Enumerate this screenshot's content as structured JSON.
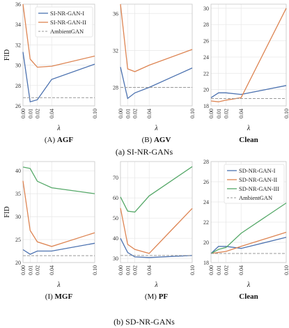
{
  "colors": {
    "series1": "#4c72b0",
    "series2": "#dd8452",
    "series3": "#55a868",
    "baseline": "#999999"
  },
  "captions": {
    "top": "(a) SI-NR-GANs",
    "bottom": "(b) SD-NR-GANs"
  },
  "chart_data": [
    {
      "type": "line",
      "ylabel": "FID",
      "xlabel": "λ",
      "caption_prefix": "(A) ",
      "caption_bold": "AGF",
      "x": [
        0.0,
        0.01,
        0.02,
        0.04,
        0.1
      ],
      "xticks": [
        "0.00",
        "0.01",
        "0.02",
        "0.04",
        "0.10"
      ],
      "ylim": [
        26,
        36
      ],
      "yticks": [
        26,
        28,
        30,
        32,
        34,
        36
      ],
      "grid": true,
      "legend": "top-right",
      "series": [
        {
          "name": "SI-NR-GAN-I",
          "color": "#4c72b0",
          "values": [
            31.3,
            26.4,
            26.6,
            28.6,
            30.1
          ]
        },
        {
          "name": "SI-NR-GAN-II",
          "color": "#dd8452",
          "values": [
            36.0,
            30.6,
            29.8,
            29.9,
            30.9
          ]
        },
        {
          "name": "AmbientGAN",
          "color": "#999999",
          "dashed": true,
          "values": [
            26.8,
            26.8,
            26.8,
            26.8,
            26.8
          ]
        }
      ]
    },
    {
      "type": "line",
      "ylabel": "",
      "xlabel": "λ",
      "caption_prefix": "(B) ",
      "caption_bold": "AGV",
      "x": [
        0.0,
        0.01,
        0.02,
        0.04,
        0.1
      ],
      "xticks": [
        "0.00",
        "0.01",
        "0.02",
        "0.04",
        "0.10"
      ],
      "ylim": [
        26,
        37
      ],
      "yticks": [
        28,
        32,
        36
      ],
      "grid": true,
      "series": [
        {
          "name": "SI-NR-GAN-I",
          "color": "#4c72b0",
          "values": [
            30.2,
            26.8,
            27.4,
            28.0,
            30.1
          ]
        },
        {
          "name": "SI-NR-GAN-II",
          "color": "#dd8452",
          "values": [
            37.0,
            30.0,
            29.7,
            30.4,
            32.1
          ]
        },
        {
          "name": "AmbientGAN",
          "color": "#999999",
          "dashed": true,
          "values": [
            28.0,
            28.0,
            28.0,
            28.0,
            28.0
          ]
        }
      ]
    },
    {
      "type": "line",
      "ylabel": "",
      "xlabel": "λ",
      "caption_prefix": "",
      "caption_bold": "Clean",
      "x": [
        0.0,
        0.01,
        0.02,
        0.04,
        0.1
      ],
      "xticks": [
        "0.00",
        "0.01",
        "0.02",
        "0.04",
        "0.10"
      ],
      "ylim": [
        18,
        30.5
      ],
      "yticks": [
        18,
        20,
        22,
        24,
        26,
        28,
        30
      ],
      "grid": true,
      "series": [
        {
          "name": "SI-NR-GAN-I",
          "color": "#4c72b0",
          "values": [
            19.0,
            19.6,
            19.6,
            19.4,
            20.5
          ]
        },
        {
          "name": "SI-NR-GAN-II",
          "color": "#dd8452",
          "values": [
            18.6,
            18.5,
            18.7,
            19.0,
            30.0
          ]
        },
        {
          "name": "AmbientGAN",
          "color": "#999999",
          "dashed": true,
          "values": [
            18.9,
            18.9,
            18.9,
            18.9,
            18.9
          ]
        }
      ]
    },
    {
      "type": "line",
      "ylabel": "FID",
      "xlabel": "λ",
      "caption_prefix": "(I) ",
      "caption_bold": "MGF",
      "x": [
        0.0,
        0.01,
        0.02,
        0.04,
        0.1
      ],
      "xticks": [
        "0.00",
        "0.01",
        "0.02",
        "0.04",
        "0.10"
      ],
      "ylim": [
        20,
        42
      ],
      "yticks": [
        20,
        25,
        30,
        35,
        40
      ],
      "grid": true,
      "series": [
        {
          "name": "SD-NR-GAN-I",
          "color": "#4c72b0",
          "values": [
            22.8,
            21.8,
            22.5,
            22.5,
            24.2
          ]
        },
        {
          "name": "SD-NR-GAN-II",
          "color": "#dd8452",
          "values": [
            37.8,
            27.0,
            24.5,
            23.5,
            26.5
          ]
        },
        {
          "name": "SD-NR-GAN-III",
          "color": "#55a868",
          "values": [
            40.8,
            40.5,
            37.7,
            36.3,
            35.0
          ]
        },
        {
          "name": "AmbientGAN",
          "color": "#999999",
          "dashed": true,
          "values": [
            21.5,
            21.5,
            21.5,
            21.5,
            21.5
          ]
        }
      ]
    },
    {
      "type": "line",
      "ylabel": "",
      "xlabel": "λ",
      "caption_prefix": "(M) ",
      "caption_bold": "PF",
      "x": [
        0.0,
        0.01,
        0.02,
        0.04,
        0.1
      ],
      "xticks": [
        "0.00",
        "0.01",
        "0.02",
        "0.04",
        "0.10"
      ],
      "ylim": [
        28,
        78
      ],
      "yticks": [
        30,
        40,
        50,
        60,
        70
      ],
      "grid": true,
      "series": [
        {
          "name": "SD-NR-GAN-I",
          "color": "#4c72b0",
          "values": [
            40.0,
            33.0,
            30.8,
            30.5,
            31.5
          ]
        },
        {
          "name": "SD-NR-GAN-II",
          "color": "#dd8452",
          "values": [
            55.0,
            37.0,
            34.5,
            32.5,
            54.8
          ]
        },
        {
          "name": "SD-NR-GAN-III",
          "color": "#55a868",
          "values": [
            60.5,
            53.5,
            53.0,
            61.0,
            75.5
          ]
        },
        {
          "name": "AmbientGAN",
          "color": "#999999",
          "dashed": true,
          "values": [
            31.5,
            31.5,
            31.5,
            31.5,
            31.5
          ]
        }
      ]
    },
    {
      "type": "line",
      "ylabel": "",
      "xlabel": "λ",
      "caption_prefix": "",
      "caption_bold": "Clean",
      "x": [
        0.0,
        0.01,
        0.02,
        0.04,
        0.1
      ],
      "xticks": [
        "0.00",
        "0.01",
        "0.02",
        "0.04",
        "0.10"
      ],
      "ylim": [
        18,
        28
      ],
      "yticks": [
        18,
        20,
        22,
        24,
        26,
        28
      ],
      "grid": true,
      "legend": "top-right",
      "series": [
        {
          "name": "SD-NR-GAN-I",
          "color": "#4c72b0",
          "values": [
            18.9,
            19.6,
            19.6,
            19.4,
            20.5
          ]
        },
        {
          "name": "SD-NR-GAN-II",
          "color": "#dd8452",
          "values": [
            18.9,
            19.0,
            19.1,
            19.6,
            21.0
          ]
        },
        {
          "name": "SD-NR-GAN-III",
          "color": "#55a868",
          "values": [
            18.9,
            19.3,
            19.5,
            20.9,
            23.9
          ]
        },
        {
          "name": "AmbientGAN",
          "color": "#999999",
          "dashed": true,
          "values": [
            18.9,
            18.9,
            18.9,
            18.9,
            18.9
          ]
        }
      ]
    }
  ]
}
